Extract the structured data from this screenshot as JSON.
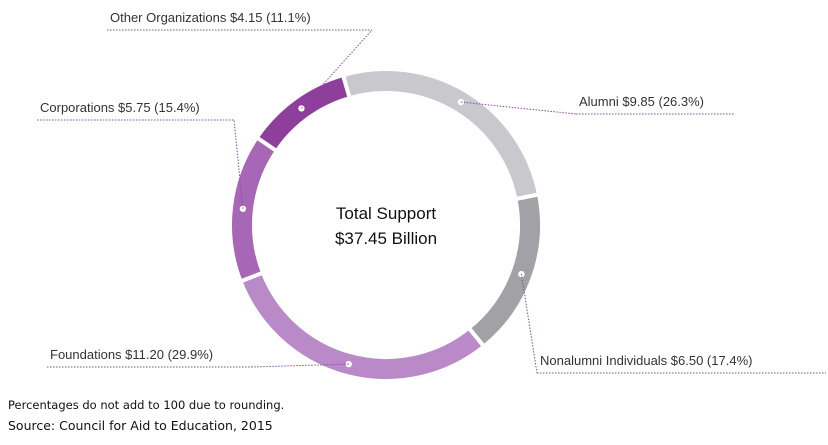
{
  "chart_data": {
    "type": "pie",
    "center_label": {
      "line1": "Total Support",
      "line2": "$37.45 Billion"
    },
    "slices": [
      {
        "name": "Alumni",
        "value": 9.85,
        "percent": 26.3,
        "label": "Alumni $9.85 (26.3%)",
        "color": "#c9c8cc"
      },
      {
        "name": "Nonalumni Individuals",
        "value": 6.5,
        "percent": 17.4,
        "label": "Nonalumni Individuals $6.50 (17.4%)",
        "color": "#a2a2a6"
      },
      {
        "name": "Foundations",
        "value": 11.2,
        "percent": 29.9,
        "label": "Foundations $11.20 (29.9%)",
        "color": "#b98ac7"
      },
      {
        "name": "Corporations",
        "value": 5.75,
        "percent": 15.4,
        "label": "Corporations $5.75 (15.4%)",
        "color": "#a766b6"
      },
      {
        "name": "Other Organizations",
        "value": 4.15,
        "percent": 11.1,
        "label": "Other Organizations $4.15 (11.1%)",
        "color": "#8e3f9c"
      }
    ],
    "leader_line_color": "#8a4aa0",
    "separator_color": "#ffffff"
  },
  "footnotes": {
    "note": "Percentages do not add to 100 due to rounding.",
    "source": "Source:  Council for Aid to Education, 2015"
  }
}
